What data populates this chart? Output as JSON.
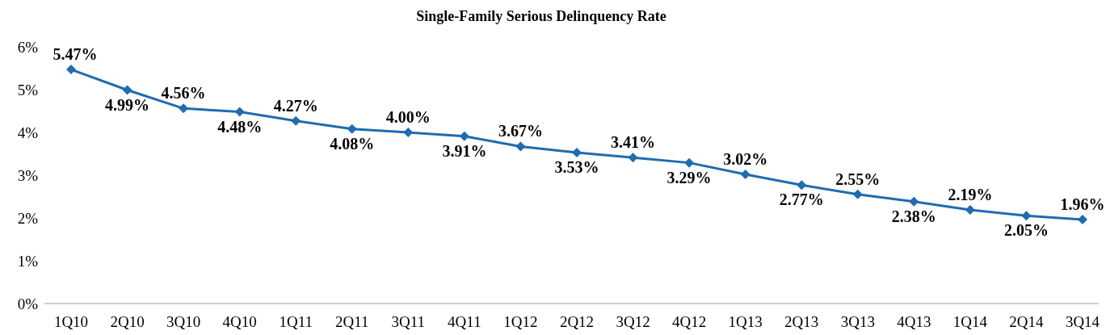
{
  "chart_data": {
    "type": "line",
    "title": "Single-Family Serious Delinquency Rate",
    "categories": [
      "1Q10",
      "2Q10",
      "3Q10",
      "4Q10",
      "1Q11",
      "2Q11",
      "3Q11",
      "4Q11",
      "1Q12",
      "2Q12",
      "3Q12",
      "4Q12",
      "1Q13",
      "2Q13",
      "3Q13",
      "4Q13",
      "1Q14",
      "2Q14",
      "3Q14"
    ],
    "series": [
      {
        "color": "#1f6cb0",
        "values": [
          5.47,
          4.99,
          4.56,
          4.48,
          4.27,
          4.08,
          4.0,
          3.91,
          3.67,
          3.53,
          3.41,
          3.29,
          3.02,
          2.77,
          2.55,
          2.38,
          2.19,
          2.05,
          1.96
        ],
        "value_labels": [
          "5.47%",
          "4.99%",
          "4.56%",
          "4.48%",
          "4.27%",
          "4.08%",
          "4.00%",
          "3.91%",
          "3.67%",
          "3.53%",
          "3.41%",
          "3.29%",
          "3.02%",
          "2.77%",
          "2.55%",
          "2.38%",
          "2.19%",
          "2.05%",
          "1.96%"
        ]
      }
    ],
    "ylim": [
      0,
      6
    ],
    "yticks": [
      {
        "value": 0,
        "label": "0%"
      },
      {
        "value": 1,
        "label": "1%"
      },
      {
        "value": 2,
        "label": "2%"
      },
      {
        "value": 3,
        "label": "3%"
      },
      {
        "value": 4,
        "label": "4%"
      },
      {
        "value": 5,
        "label": "5%"
      },
      {
        "value": 6,
        "label": "6%"
      }
    ],
    "marker": "diamond",
    "line_style": "solid",
    "grid": false
  }
}
